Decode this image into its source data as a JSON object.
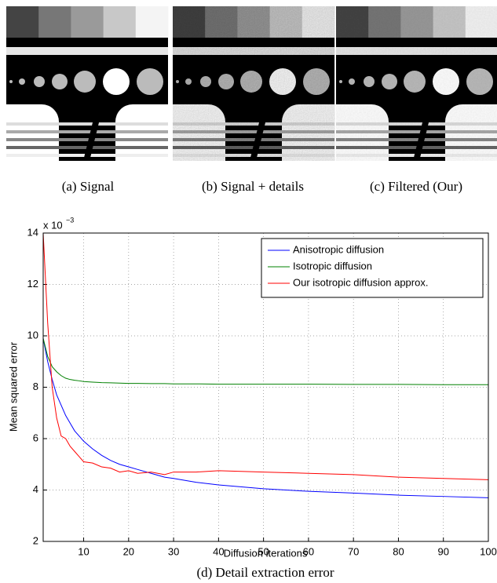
{
  "panels": [
    {
      "caption": "(a)  Signal"
    },
    {
      "caption": "(b)  Signal + details"
    },
    {
      "caption": "(c)  Filtered (Our)"
    }
  ],
  "chart_data": {
    "type": "line",
    "caption": "(d)  Detail extraction error",
    "xlabel": "Diffusion iterations",
    "ylabel": "Mean squared error",
    "y_multiplier": "x 10",
    "y_multiplier_exponent": "−3",
    "x": [
      1,
      2,
      3,
      4,
      5,
      6,
      7,
      8,
      9,
      10,
      12,
      14,
      16,
      18,
      20,
      22,
      25,
      28,
      30,
      35,
      40,
      50,
      60,
      70,
      80,
      90,
      100
    ],
    "series": [
      {
        "name": "Anisotropic diffusion",
        "color": "#0000ff",
        "values": [
          9.9,
          9.0,
          8.3,
          7.7,
          7.3,
          6.9,
          6.6,
          6.3,
          6.1,
          5.9,
          5.6,
          5.35,
          5.15,
          5.0,
          4.9,
          4.8,
          4.65,
          4.5,
          4.45,
          4.3,
          4.2,
          4.05,
          3.95,
          3.88,
          3.8,
          3.75,
          3.7
        ]
      },
      {
        "name": "Isotropic diffusion",
        "color": "#008000",
        "values": [
          9.9,
          9.2,
          8.8,
          8.6,
          8.45,
          8.35,
          8.3,
          8.27,
          8.25,
          8.22,
          8.2,
          8.18,
          8.17,
          8.16,
          8.15,
          8.15,
          8.14,
          8.14,
          8.13,
          8.13,
          8.12,
          8.12,
          8.12,
          8.11,
          8.11,
          8.1,
          8.1
        ]
      },
      {
        "name": "Our isotropic diffusion approx.",
        "color": "#ff0000",
        "values": [
          14,
          10.5,
          8,
          6.8,
          6.1,
          6.0,
          5.7,
          5.5,
          5.3,
          5.1,
          5.05,
          4.9,
          4.85,
          4.7,
          4.75,
          4.65,
          4.7,
          4.6,
          4.7,
          4.7,
          4.75,
          4.7,
          4.65,
          4.6,
          4.5,
          4.45,
          4.4
        ]
      }
    ],
    "xlim": [
      1,
      100
    ],
    "xticks": [
      10,
      20,
      30,
      40,
      50,
      60,
      70,
      80,
      90,
      100
    ],
    "ylim": [
      2,
      14
    ],
    "yticks": [
      2,
      4,
      6,
      8,
      10,
      12,
      14
    ],
    "grid": true,
    "legend": "upper right"
  }
}
